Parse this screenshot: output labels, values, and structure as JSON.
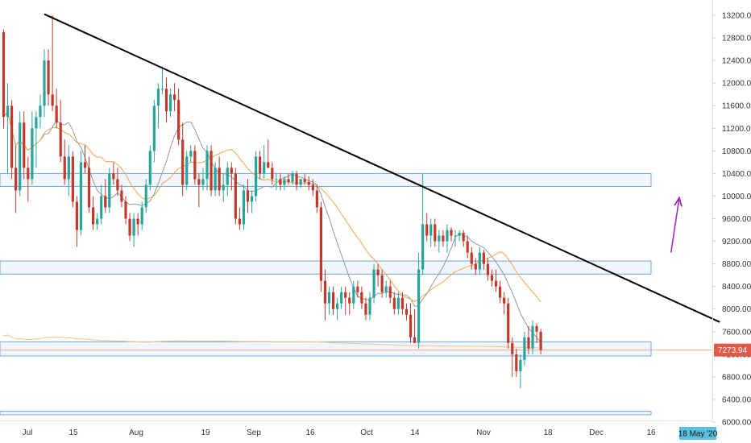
{
  "chart_data": {
    "type": "candlestick",
    "title": "",
    "xlabel": "",
    "ylabel": "",
    "ylim": [
      6000,
      13400
    ],
    "grid": false,
    "x_ticks": [
      "Jul",
      "15",
      "Aug",
      "19",
      "Sep",
      "16",
      "Oct",
      "14",
      "Nov",
      "18",
      "Dec",
      "16"
    ],
    "y_ticks": [
      13200,
      12800,
      12400,
      12000,
      11600,
      11200,
      10800,
      10400,
      10000,
      9600,
      9200,
      8800,
      8400,
      8000,
      7600,
      7200,
      6800,
      6400,
      6000
    ],
    "y_tick_labels": [
      "13200.00",
      "12800.00",
      "12400.00",
      "12000.00",
      "11600.00",
      "11200.00",
      "10800.00",
      "10400.00",
      "10000.00",
      "9600.00",
      "9200.00",
      "8800.00",
      "8400.00",
      "8000.00",
      "7600.00",
      "7200.00",
      "6800.00",
      "6400.00",
      "6000.00"
    ],
    "last_price": 7273.94,
    "last_price_label": "7273.94",
    "date_marker": "18 May '20",
    "candle_x_range": [
      "2019-06-29",
      "2019-11-30"
    ],
    "ohlc": [
      [
        12900,
        12950,
        11200,
        11400
      ],
      [
        11400,
        12000,
        10400,
        11600
      ],
      [
        11600,
        11700,
        10300,
        10500
      ],
      [
        10500,
        10900,
        9700,
        10100
      ],
      [
        10100,
        11500,
        10000,
        11300
      ],
      [
        11300,
        11500,
        10300,
        10500
      ],
      [
        10500,
        10700,
        9900,
        10300
      ],
      [
        10300,
        11500,
        10200,
        11200
      ],
      [
        11200,
        11500,
        10500,
        11400
      ],
      [
        11400,
        11800,
        11200,
        11600
      ],
      [
        11600,
        12600,
        11400,
        12400
      ],
      [
        12400,
        12600,
        11600,
        11800
      ],
      [
        11800,
        13200,
        11500,
        11600
      ],
      [
        11600,
        11900,
        11200,
        11300
      ],
      [
        11300,
        11700,
        10600,
        10700
      ],
      [
        10700,
        11000,
        10200,
        10300
      ],
      [
        10300,
        10900,
        10000,
        10700
      ],
      [
        10700,
        10800,
        9800,
        9900
      ],
      [
        9900,
        10000,
        9100,
        9400
      ],
      [
        9400,
        10800,
        9300,
        10600
      ],
      [
        10600,
        10900,
        10400,
        10500
      ],
      [
        10500,
        10700,
        9700,
        9800
      ],
      [
        9800,
        10000,
        9400,
        9500
      ],
      [
        9500,
        9700,
        9400,
        9600
      ],
      [
        9600,
        10200,
        9500,
        10000
      ],
      [
        10000,
        10300,
        9700,
        9800
      ],
      [
        9800,
        10500,
        9700,
        10400
      ],
      [
        10400,
        10600,
        10200,
        10300
      ],
      [
        10300,
        10500,
        10000,
        10100
      ],
      [
        10100,
        10200,
        9800,
        9900
      ],
      [
        9900,
        10000,
        9500,
        9600
      ],
      [
        9600,
        9700,
        9200,
        9300
      ],
      [
        9300,
        9700,
        9100,
        9600
      ],
      [
        9600,
        9700,
        9300,
        9500
      ],
      [
        9500,
        9900,
        9400,
        9800
      ],
      [
        9800,
        10300,
        9700,
        10200
      ],
      [
        10200,
        10900,
        10100,
        10800
      ],
      [
        10800,
        11700,
        10600,
        11600
      ],
      [
        11600,
        12000,
        11200,
        11900
      ],
      [
        11900,
        12300,
        11800,
        11900
      ],
      [
        11900,
        12100,
        11300,
        11500
      ],
      [
        11500,
        11900,
        11400,
        11800
      ],
      [
        11800,
        12000,
        11500,
        11700
      ],
      [
        11700,
        11900,
        10900,
        11000
      ],
      [
        11000,
        11300,
        10000,
        10200
      ],
      [
        10200,
        10800,
        10100,
        10700
      ],
      [
        10700,
        10900,
        10600,
        10800
      ],
      [
        10800,
        10900,
        10200,
        10300
      ],
      [
        10300,
        10400,
        9800,
        10200
      ],
      [
        10200,
        10500,
        10100,
        10300
      ],
      [
        10300,
        10900,
        10100,
        10800
      ],
      [
        10800,
        10900,
        10000,
        10100
      ],
      [
        10100,
        10600,
        10000,
        10500
      ],
      [
        10500,
        10700,
        10000,
        10100
      ],
      [
        10100,
        10400,
        9900,
        10200
      ],
      [
        10200,
        10600,
        10000,
        10500
      ],
      [
        10500,
        10600,
        10100,
        10400
      ],
      [
        10400,
        10500,
        9500,
        9600
      ],
      [
        9600,
        9800,
        9400,
        9500
      ],
      [
        9500,
        10200,
        9400,
        10100
      ],
      [
        10100,
        10300,
        9700,
        9900
      ],
      [
        9900,
        10100,
        9700,
        10000
      ],
      [
        10000,
        10800,
        9900,
        10700
      ],
      [
        10700,
        10800,
        10300,
        10400
      ],
      [
        10400,
        10900,
        10300,
        10600
      ],
      [
        10600,
        11000,
        10500,
        10500
      ],
      [
        10500,
        10600,
        10200,
        10300
      ],
      [
        10300,
        10400,
        10100,
        10300
      ],
      [
        10300,
        10400,
        10100,
        10200
      ],
      [
        10200,
        10350,
        10100,
        10300
      ],
      [
        10300,
        10400,
        10200,
        10250
      ],
      [
        10250,
        10450,
        10200,
        10400
      ],
      [
        10400,
        10450,
        10100,
        10200
      ],
      [
        10200,
        10300,
        10150,
        10300
      ],
      [
        10300,
        10400,
        10200,
        10250
      ],
      [
        10250,
        10350,
        10100,
        10200
      ],
      [
        10200,
        10300,
        10000,
        10100
      ],
      [
        10100,
        10200,
        9700,
        9800
      ],
      [
        9800,
        9900,
        8300,
        8500
      ],
      [
        8500,
        8700,
        7800,
        8100
      ],
      [
        8100,
        8400,
        7900,
        8300
      ],
      [
        8300,
        8400,
        7900,
        8000
      ],
      [
        8000,
        8200,
        7800,
        8100
      ],
      [
        8100,
        8400,
        8000,
        8300
      ],
      [
        8300,
        8400,
        7900,
        8200
      ],
      [
        8200,
        8300,
        7900,
        8100
      ],
      [
        8100,
        8500,
        8000,
        8400
      ],
      [
        8400,
        8500,
        8200,
        8300
      ],
      [
        8300,
        8400,
        8000,
        8100
      ],
      [
        8100,
        8200,
        7800,
        7900
      ],
      [
        7900,
        8300,
        7800,
        8200
      ],
      [
        8200,
        8800,
        8100,
        8700
      ],
      [
        8700,
        8800,
        8400,
        8600
      ],
      [
        8600,
        8700,
        8200,
        8300
      ],
      [
        8300,
        8500,
        8200,
        8400
      ],
      [
        8400,
        8500,
        8100,
        8200
      ],
      [
        8200,
        8300,
        7900,
        8000
      ],
      [
        8000,
        8300,
        7900,
        8200
      ],
      [
        8200,
        8300,
        7900,
        8000
      ],
      [
        8000,
        8100,
        7800,
        7900
      ],
      [
        7900,
        8100,
        7400,
        7500
      ],
      [
        7500,
        8000,
        7400,
        7400
      ],
      [
        7400,
        9000,
        7300,
        8700
      ],
      [
        8700,
        10400,
        8600,
        9500
      ],
      [
        9500,
        9700,
        9200,
        9300
      ],
      [
        9300,
        9600,
        9100,
        9500
      ],
      [
        9500,
        9600,
        9100,
        9200
      ],
      [
        9200,
        9400,
        9000,
        9300
      ],
      [
        9300,
        9400,
        9100,
        9200
      ],
      [
        9200,
        9500,
        9000,
        9400
      ],
      [
        9400,
        9450,
        9200,
        9300
      ],
      [
        9300,
        9400,
        9100,
        9300
      ],
      [
        9300,
        9400,
        9200,
        9350
      ],
      [
        9350,
        9400,
        9100,
        9200
      ],
      [
        9200,
        9300,
        8900,
        9000
      ],
      [
        9000,
        9100,
        8700,
        8800
      ],
      [
        8800,
        8900,
        8600,
        8700
      ],
      [
        8700,
        9100,
        8600,
        9000
      ],
      [
        9000,
        9050,
        8700,
        8800
      ],
      [
        8800,
        8900,
        8500,
        8600
      ],
      [
        8600,
        8700,
        8400,
        8500
      ],
      [
        8500,
        8700,
        8300,
        8400
      ],
      [
        8400,
        8500,
        8100,
        8200
      ],
      [
        8200,
        8300,
        7900,
        8100
      ],
      [
        8100,
        8200,
        7300,
        7400
      ],
      [
        7400,
        7500,
        6800,
        7200
      ],
      [
        7200,
        7300,
        6800,
        6900
      ],
      [
        6900,
        7200,
        6600,
        7100
      ],
      [
        7100,
        7600,
        7000,
        7500
      ],
      [
        7500,
        7700,
        7200,
        7300
      ],
      [
        7300,
        7800,
        7200,
        7700
      ],
      [
        7700,
        7750,
        7400,
        7600
      ],
      [
        7600,
        7650,
        7200,
        7274
      ]
    ],
    "series": [
      {
        "type": "line",
        "period": 10,
        "color": "#8a9aaa"
      },
      {
        "type": "line",
        "period": 21,
        "color": "#f7a24a"
      },
      {
        "type": "line",
        "period": 200,
        "color": "#f7c08a"
      }
    ],
    "annotations": [
      {
        "type": "trendline",
        "from": [
          "2019-07-09",
          13220
        ],
        "to": [
          "2019-12-22",
          7770
        ],
        "color": "#000000"
      },
      {
        "type": "zone",
        "y": [
          10170,
          10400
        ],
        "color": "#6fa8dc"
      },
      {
        "type": "zone",
        "y": [
          8620,
          8850
        ],
        "color": "#6fa8dc"
      },
      {
        "type": "zone",
        "y": [
          7170,
          7420
        ],
        "color": "#6fa8dc"
      },
      {
        "type": "zone",
        "y": [
          6130,
          6190
        ],
        "color": "#6fa8dc"
      },
      {
        "type": "arrow",
        "from": [
          "2019-12-10",
          9000
        ],
        "to": [
          "2019-12-12",
          9950
        ],
        "color": "#9c27b0"
      },
      {
        "type": "hline",
        "y": 7273.94,
        "color": "#f4a58a"
      }
    ],
    "colors": {
      "up": "#26a69a",
      "down": "#c0392b",
      "price_tag": "#e05a4a",
      "date_tag": "#5bc0de"
    }
  }
}
